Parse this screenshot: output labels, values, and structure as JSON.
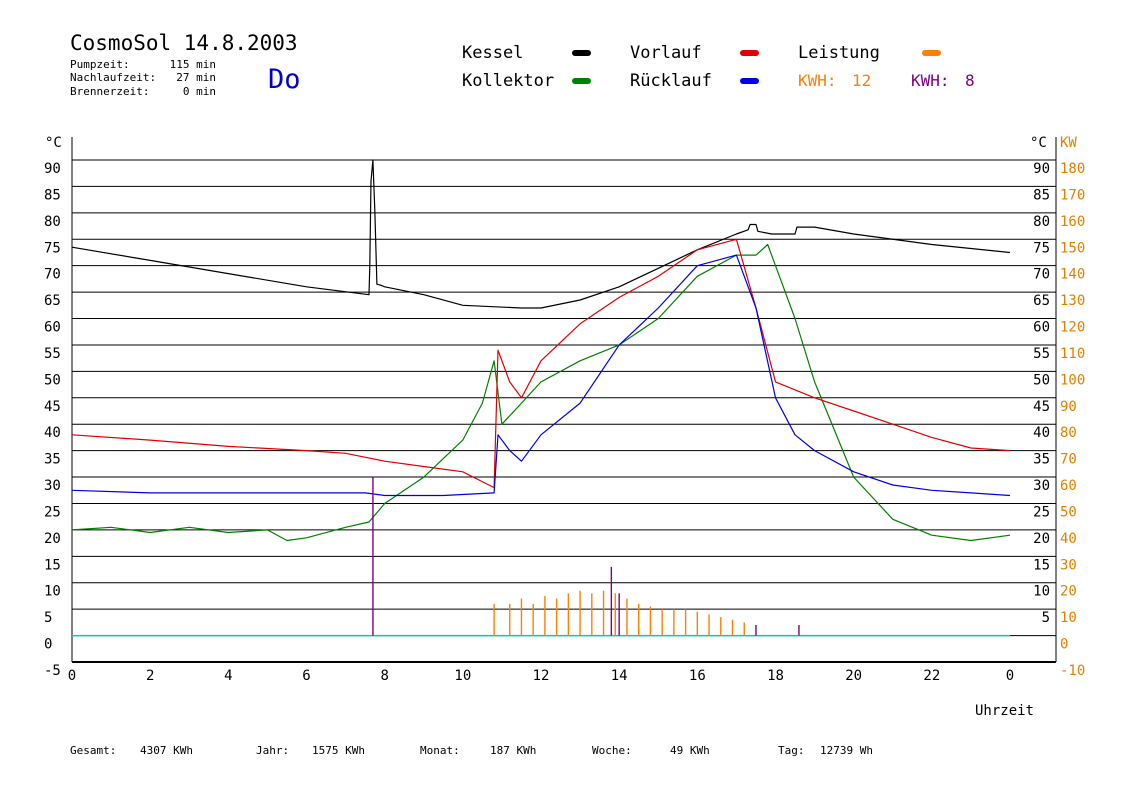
{
  "header": {
    "title": "CosmoSol 14.8.2003",
    "weekday": "Do",
    "stats": [
      {
        "label": "Pumpzeit:",
        "value": "115 min"
      },
      {
        "label": "Nachlaufzeit:",
        "value": "27 min"
      },
      {
        "label": "Brennerzeit:",
        "value": "0 min"
      }
    ]
  },
  "legend": {
    "items": [
      {
        "label": "Kessel",
        "color": "#000000"
      },
      {
        "label": "Kollektor",
        "color": "#008000"
      },
      {
        "label": "Vorlauf",
        "color": "#e00000"
      },
      {
        "label": "Rücklauf",
        "color": "#0000e0"
      },
      {
        "label": "Leistung",
        "color": "#ff8000"
      }
    ],
    "kwh": [
      {
        "label": "KWH:",
        "value": "12",
        "color": "#ff8000"
      },
      {
        "label": "KWH:",
        "value": "8",
        "color": "#800080"
      }
    ]
  },
  "axes": {
    "left_unit": "°C",
    "right_unit_c": "°C",
    "right_unit_kw": "KW",
    "x_label": "Uhrzeit"
  },
  "footer": [
    {
      "label": "Gesamt:",
      "value": "4307 KWh"
    },
    {
      "label": "Jahr:",
      "value": "1575 KWh"
    },
    {
      "label": "Monat:",
      "value": "187 KWh"
    },
    {
      "label": "Woche:",
      "value": "49 KWh"
    },
    {
      "label": "Tag:",
      "value": "12739 Wh"
    }
  ],
  "chart_data": {
    "type": "line",
    "x_unit": "hour",
    "xlim": [
      0,
      24
    ],
    "x_ticks": [
      "0",
      "2",
      "4",
      "6",
      "8",
      "10",
      "12",
      "14",
      "16",
      "18",
      "20",
      "22",
      "0"
    ],
    "ylim": [
      -5,
      95
    ],
    "y_ticks_left": [
      "90",
      "85",
      "80",
      "75",
      "70",
      "65",
      "60",
      "55",
      "50",
      "45",
      "40",
      "35",
      "30",
      "25",
      "20",
      "15",
      "10",
      "5",
      "0",
      "-5"
    ],
    "y_ticks_right_c": [
      "90",
      "85",
      "80",
      "75",
      "70",
      "65",
      "60",
      "55",
      "50",
      "45",
      "40",
      "35",
      "30",
      "25",
      "20",
      "15",
      "10",
      "5"
    ],
    "y_ticks_right_kw": [
      "180",
      "170",
      "160",
      "150",
      "140",
      "130",
      "120",
      "110",
      "100",
      "90",
      "80",
      "70",
      "60",
      "50",
      "40",
      "30",
      "20",
      "10",
      "0",
      "-10"
    ],
    "series": [
      {
        "name": "Kessel",
        "color": "#000000",
        "x": [
          0,
          2,
          4,
          6,
          7.6,
          7.62,
          7.65,
          7.7,
          7.75,
          7.8,
          7.9,
          8,
          9,
          10,
          11.5,
          12,
          13,
          14,
          15,
          16,
          17,
          17.3,
          17.35,
          17.5,
          17.55,
          17.9,
          18.5,
          18.55,
          19,
          20,
          22,
          24
        ],
        "y": [
          73.5,
          71,
          68.5,
          66,
          64.5,
          70,
          86,
          90,
          80,
          66.5,
          66.3,
          66,
          64.5,
          62.5,
          62,
          62,
          63.5,
          66,
          69.5,
          73,
          76,
          76.8,
          77.8,
          77.8,
          76.5,
          76,
          76,
          77.3,
          77.3,
          76,
          74,
          72.5
        ]
      },
      {
        "name": "Kollektor",
        "color": "#008000",
        "x": [
          0,
          1,
          2,
          3,
          4,
          5,
          5.5,
          6,
          7,
          7.6,
          8,
          9,
          10,
          10.5,
          10.8,
          11,
          11.5,
          12,
          13,
          14,
          15,
          16,
          17,
          17.5,
          17.8,
          18,
          18.5,
          19,
          20,
          21,
          22,
          23,
          24
        ],
        "y": [
          20,
          20.5,
          19.5,
          20.5,
          19.5,
          20,
          18,
          18.5,
          20.5,
          21.5,
          25,
          30,
          37,
          44,
          52,
          40,
          44,
          48,
          52,
          55,
          60,
          68,
          72,
          72,
          74,
          70,
          60,
          48,
          30,
          22,
          19,
          18,
          19
        ]
      },
      {
        "name": "Vorlauf",
        "color": "#e00000",
        "x": [
          0,
          2,
          4,
          6,
          7,
          8,
          9,
          10,
          10.8,
          10.9,
          11.2,
          11.5,
          12,
          13,
          14,
          15,
          16,
          17,
          17.5,
          18,
          19,
          20,
          21,
          22,
          23,
          24
        ],
        "y": [
          38,
          37,
          35.8,
          35,
          34.5,
          33,
          32,
          31,
          28,
          54,
          48,
          45,
          52,
          59,
          64,
          68,
          73,
          75,
          62,
          48,
          45,
          42.5,
          40,
          37.5,
          35.5,
          35
        ]
      },
      {
        "name": "Rücklauf",
        "color": "#0000e0",
        "x": [
          0,
          2,
          4,
          6,
          7.5,
          8,
          9,
          9.5,
          10.8,
          10.9,
          11.2,
          11.5,
          12,
          13,
          14,
          15,
          16,
          17,
          17.5,
          18,
          18.5,
          19,
          20,
          21,
          22,
          23,
          24
        ],
        "y": [
          27.5,
          27,
          27,
          27,
          27,
          26.5,
          26.5,
          26.5,
          27,
          38,
          35,
          33,
          38,
          44,
          55,
          62,
          70,
          72,
          62,
          45,
          38,
          35,
          31,
          28.5,
          27.5,
          27,
          26.5
        ]
      }
    ],
    "power_series": {
      "name": "Leistung",
      "color": "#ff8000",
      "x": [
        10.8,
        11.2,
        11.5,
        11.8,
        12.1,
        12.4,
        12.7,
        13.0,
        13.3,
        13.6,
        13.9,
        14.2,
        14.5,
        14.8,
        15.1,
        15.4,
        15.7,
        16.0,
        16.3,
        16.6,
        16.9,
        17.2
      ],
      "y": [
        6,
        6,
        7,
        6,
        7.5,
        7,
        8,
        8.5,
        8,
        8.5,
        8,
        7,
        6,
        5.5,
        5,
        5,
        5,
        4.5,
        4,
        3.5,
        3,
        2.5
      ]
    },
    "purple_series": {
      "name": "KWH 8",
      "color": "#800080",
      "x": [
        7.7,
        13.8,
        14.0,
        17.5,
        18.6
      ],
      "y": [
        30,
        13,
        8,
        2,
        2
      ]
    },
    "baseline_color": "#00cccc"
  }
}
